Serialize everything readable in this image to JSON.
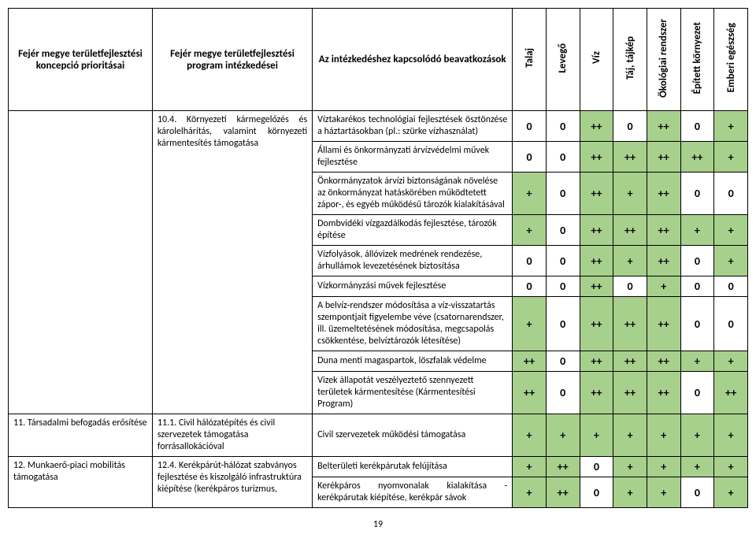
{
  "colors": {
    "green": "#a8d08d",
    "red": "#ff5050",
    "white": "#ffffff"
  },
  "score_rules": {
    "green": [
      "+",
      "++"
    ],
    "red": [
      "-",
      "--"
    ]
  },
  "headers": {
    "c1": "Fejér megye területfejlesztési koncepció prioritásai",
    "c2": "Fejér megye területfejlesztési program intézkedései",
    "c3": "Az intézkedéshez kapcsolódó beavatkozások",
    "v": [
      "Talaj",
      "Levegő",
      "Víz",
      "Táj, tájkép",
      "Ökológiai rendszer",
      "Épített környezet",
      "Emberi egészség"
    ]
  },
  "rows": [
    {
      "c1": "",
      "c1_rowspan": 9,
      "c2": "10.4. Környezeti kármegelőzés és károlelhárítás, valamint környezeti kármentesítés támogatása",
      "c2_rowspan": 9,
      "c2_justify": true,
      "c3": "Víztakarékos technológiai fejlesztések ösztönzése a háztartásokban (pl.: szürke vízhasználat)",
      "c3_justify": true,
      "s": [
        "0",
        "0",
        "++",
        "0",
        "++",
        "0",
        "+"
      ]
    },
    {
      "c3": "Állami és önkormányzati árvízvédelmi művek fejlesztése",
      "s": [
        "0",
        "0",
        "++",
        "++",
        "++",
        "++",
        "+"
      ]
    },
    {
      "c3": "Önkormányzatok árvízi biztonságának növelése az önkormányzat hatáskörében működtetett zápor-, és egyéb működésű tározók kialakításával",
      "s": [
        "+",
        "0",
        "++",
        "+",
        "++",
        "0",
        "0"
      ]
    },
    {
      "c3": "Dombvidéki vízgazdálkodás fejlesztése, tározók építése",
      "s": [
        "+",
        "0",
        "++",
        "++",
        "++",
        "+",
        "+"
      ]
    },
    {
      "c3": "Vízfolyások, állóvizek medrének rendezése, árhullámok levezetésének biztosítása",
      "s": [
        "0",
        "0",
        "++",
        "+",
        "++",
        "0",
        "+"
      ]
    },
    {
      "c3": "Vízkormányzási művek fejlesztése",
      "s": [
        "0",
        "0",
        "++",
        "0",
        "+",
        "0",
        "0"
      ]
    },
    {
      "c3": "A belvíz-rendszer módosítása a víz-visszatartás szempontjait figyelembe véve (csatornarendszer, ill. üzemeltetésének módosítása, megcsapolás csökkentése, belvíztározók létesítése)",
      "s": [
        "+",
        "0",
        "++",
        "++",
        "++",
        "0",
        "0"
      ]
    },
    {
      "c3": "Duna menti magaspartok, löszfalak védelme",
      "s": [
        "++",
        "0",
        "++",
        "++",
        "++",
        "+",
        "+"
      ]
    },
    {
      "c3": "Vizek állapotát veszélyeztető szennyezett területek kármentesítése (Kármentesítési Program)",
      "s": [
        "++",
        "0",
        "++",
        "++",
        "++",
        "0",
        "++"
      ]
    },
    {
      "c1": "11. Társadalmi befogadás erősítése",
      "c2": "11.1. Civil hálózatépítés és civil szervezetek támogatása forrásallokációval",
      "c3": "Civil szervezetek működési támogatása",
      "s": [
        "+",
        "+",
        "+",
        "+",
        "+",
        "+",
        "+"
      ]
    },
    {
      "c1": "12. Munkaerő-piaci mobilitás támogatása",
      "c1_rowspan": 2,
      "c2": "12.4. Kerékpárút-hálózat szabványos fejlesztése és kiszolgáló infrastruktúra kiépítése (kerékpáros turizmus,",
      "c2_rowspan": 2,
      "c3": "Belterületi kerékpárutak felújítása",
      "s": [
        "+",
        "++",
        "0",
        "+",
        "+",
        "+",
        "+"
      ]
    },
    {
      "c3": "Kerékpáros nyomvonalak kialakítása - kerékpárutak kiépítése, kerékpár sávok",
      "c3_justify": true,
      "s": [
        "+",
        "++",
        "0",
        "+",
        "+",
        "0",
        "+"
      ]
    }
  ],
  "page": "19"
}
